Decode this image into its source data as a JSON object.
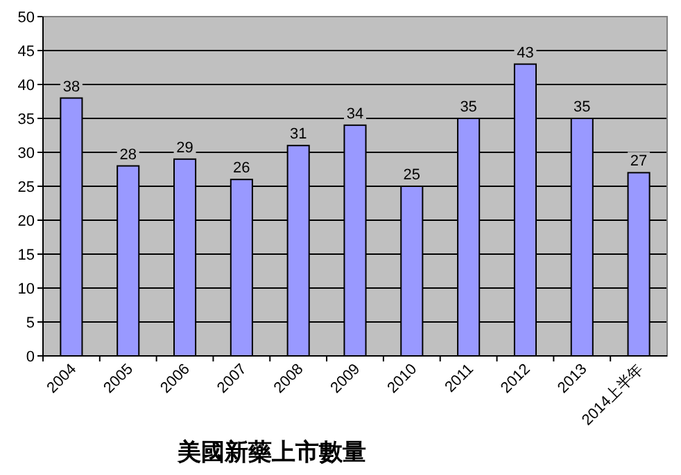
{
  "chart_data": {
    "type": "bar",
    "xlabel": "美國新藥上市數量",
    "categories": [
      "2004",
      "2005",
      "2006",
      "2007",
      "2008",
      "2009",
      "2010",
      "2011",
      "2012",
      "2013",
      "2014上半年"
    ],
    "values": [
      38,
      28,
      29,
      26,
      31,
      34,
      25,
      35,
      43,
      35,
      27
    ],
    "color": "#9999ff",
    "ylim": [
      0,
      50
    ],
    "yticks": [
      0,
      5,
      10,
      15,
      20,
      25,
      30,
      35,
      40,
      45,
      50
    ],
    "grid": "y",
    "data_labels": true
  }
}
